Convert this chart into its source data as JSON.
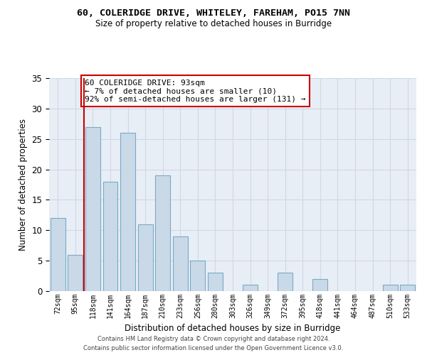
{
  "title1": "60, COLERIDGE DRIVE, WHITELEY, FAREHAM, PO15 7NN",
  "title2": "Size of property relative to detached houses in Burridge",
  "xlabel": "Distribution of detached houses by size in Burridge",
  "ylabel": "Number of detached properties",
  "bar_labels": [
    "72sqm",
    "95sqm",
    "118sqm",
    "141sqm",
    "164sqm",
    "187sqm",
    "210sqm",
    "233sqm",
    "256sqm",
    "280sqm",
    "303sqm",
    "326sqm",
    "349sqm",
    "372sqm",
    "395sqm",
    "418sqm",
    "441sqm",
    "464sqm",
    "487sqm",
    "510sqm",
    "533sqm"
  ],
  "values": [
    12,
    6,
    27,
    18,
    26,
    11,
    19,
    9,
    5,
    3,
    0,
    1,
    0,
    3,
    0,
    2,
    0,
    0,
    0,
    1,
    1
  ],
  "bar_color": "#c9d9e8",
  "bar_edge_color": "#7aaac8",
  "vline_x": 1.5,
  "vline_color": "#cc0000",
  "annotation_text": "60 COLERIDGE DRIVE: 93sqm\n← 7% of detached houses are smaller (10)\n92% of semi-detached houses are larger (131) →",
  "annotation_box_color": "#ffffff",
  "annotation_box_edge": "#cc0000",
  "grid_color": "#d0d8e8",
  "background_color": "#e8eef5",
  "ylim": [
    0,
    35
  ],
  "yticks": [
    0,
    5,
    10,
    15,
    20,
    25,
    30,
    35
  ],
  "footer1": "Contains HM Land Registry data © Crown copyright and database right 2024.",
  "footer2": "Contains public sector information licensed under the Open Government Licence v3.0."
}
